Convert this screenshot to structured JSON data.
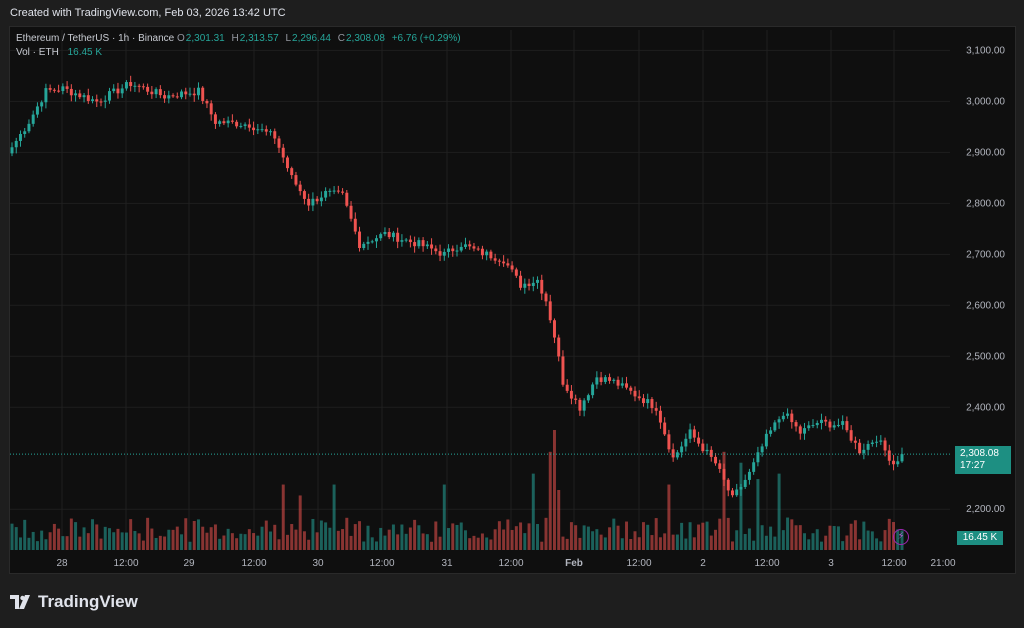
{
  "header": {
    "caption": "Created with TradingView.com, Feb 03, 2026 13:42 UTC"
  },
  "legend": {
    "symbol": "Ethereum / TetherUS · 1h · Binance",
    "open_label": "O",
    "open": "2,301.31",
    "high_label": "H",
    "high": "2,313.57",
    "low_label": "L",
    "low": "2,296.44",
    "close_label": "C",
    "close": "2,308.08",
    "change": "+6.76 (+0.29%)",
    "vol_label": "Vol · ETH",
    "vol_value": "16.45 K"
  },
  "price_axis": {
    "ticks": [
      "3,100.00",
      "3,000.00",
      "2,900.00",
      "2,800.00",
      "2,700.00",
      "2,600.00",
      "2,500.00",
      "2,400.00",
      "2,200.00"
    ],
    "current_price": "2,308.08",
    "countdown": "17:27",
    "volume_tag": "16.45 K"
  },
  "time_axis": {
    "labels": [
      "28",
      "12:00",
      "29",
      "12:00",
      "30",
      "12:00",
      "31",
      "12:00",
      "Feb",
      "12:00",
      "2",
      "12:00",
      "3",
      "12:00",
      "21:00"
    ]
  },
  "footer": {
    "brand": "TradingView"
  },
  "colors": {
    "up": "#26a69a",
    "down": "#ef5350",
    "background": "#0f0f0f",
    "grid": "#1f1f1f",
    "price_tag": "#1d8f82"
  },
  "chart_data": {
    "type": "candlestick",
    "symbol": "ETHUSDT",
    "interval": "1h",
    "ylim": [
      2120,
      3140
    ],
    "grid": true,
    "waypoints": [
      {
        "i": 0,
        "close": 2910
      },
      {
        "i": 4,
        "close": 2960
      },
      {
        "i": 8,
        "close": 3020
      },
      {
        "i": 12,
        "close": 3025
      },
      {
        "i": 20,
        "close": 3000
      },
      {
        "i": 28,
        "close": 3035
      },
      {
        "i": 36,
        "close": 3010
      },
      {
        "i": 44,
        "close": 3020
      },
      {
        "i": 48,
        "close": 2960
      },
      {
        "i": 56,
        "close": 2955
      },
      {
        "i": 62,
        "close": 2930
      },
      {
        "i": 66,
        "close": 2850
      },
      {
        "i": 70,
        "close": 2800
      },
      {
        "i": 74,
        "close": 2820
      },
      {
        "i": 78,
        "close": 2815
      },
      {
        "i": 82,
        "close": 2720
      },
      {
        "i": 88,
        "close": 2740
      },
      {
        "i": 96,
        "close": 2720
      },
      {
        "i": 102,
        "close": 2700
      },
      {
        "i": 106,
        "close": 2720
      },
      {
        "i": 110,
        "close": 2705
      },
      {
        "i": 116,
        "close": 2690
      },
      {
        "i": 120,
        "close": 2640
      },
      {
        "i": 124,
        "close": 2650
      },
      {
        "i": 126,
        "close": 2610
      },
      {
        "i": 128,
        "close": 2540
      },
      {
        "i": 130,
        "close": 2450
      },
      {
        "i": 134,
        "close": 2400
      },
      {
        "i": 138,
        "close": 2460
      },
      {
        "i": 142,
        "close": 2450
      },
      {
        "i": 148,
        "close": 2420
      },
      {
        "i": 152,
        "close": 2400
      },
      {
        "i": 156,
        "close": 2300
      },
      {
        "i": 160,
        "close": 2350
      },
      {
        "i": 166,
        "close": 2290
      },
      {
        "i": 170,
        "close": 2220
      },
      {
        "i": 174,
        "close": 2270
      },
      {
        "i": 178,
        "close": 2340
      },
      {
        "i": 182,
        "close": 2390
      },
      {
        "i": 186,
        "close": 2350
      },
      {
        "i": 190,
        "close": 2370
      },
      {
        "i": 196,
        "close": 2365
      },
      {
        "i": 200,
        "close": 2315
      },
      {
        "i": 204,
        "close": 2340
      },
      {
        "i": 208,
        "close": 2290
      },
      {
        "i": 210,
        "close": 2308
      }
    ],
    "volume_spikes": [
      {
        "i": 64,
        "v": 12
      },
      {
        "i": 68,
        "v": 10
      },
      {
        "i": 76,
        "v": 12
      },
      {
        "i": 102,
        "v": 12
      },
      {
        "i": 123,
        "v": 14
      },
      {
        "i": 127,
        "v": 18
      },
      {
        "i": 128,
        "v": 22
      },
      {
        "i": 129,
        "v": 11
      },
      {
        "i": 155,
        "v": 12
      },
      {
        "i": 168,
        "v": 18
      },
      {
        "i": 172,
        "v": 16
      },
      {
        "i": 176,
        "v": 13
      },
      {
        "i": 181,
        "v": 14
      }
    ]
  }
}
